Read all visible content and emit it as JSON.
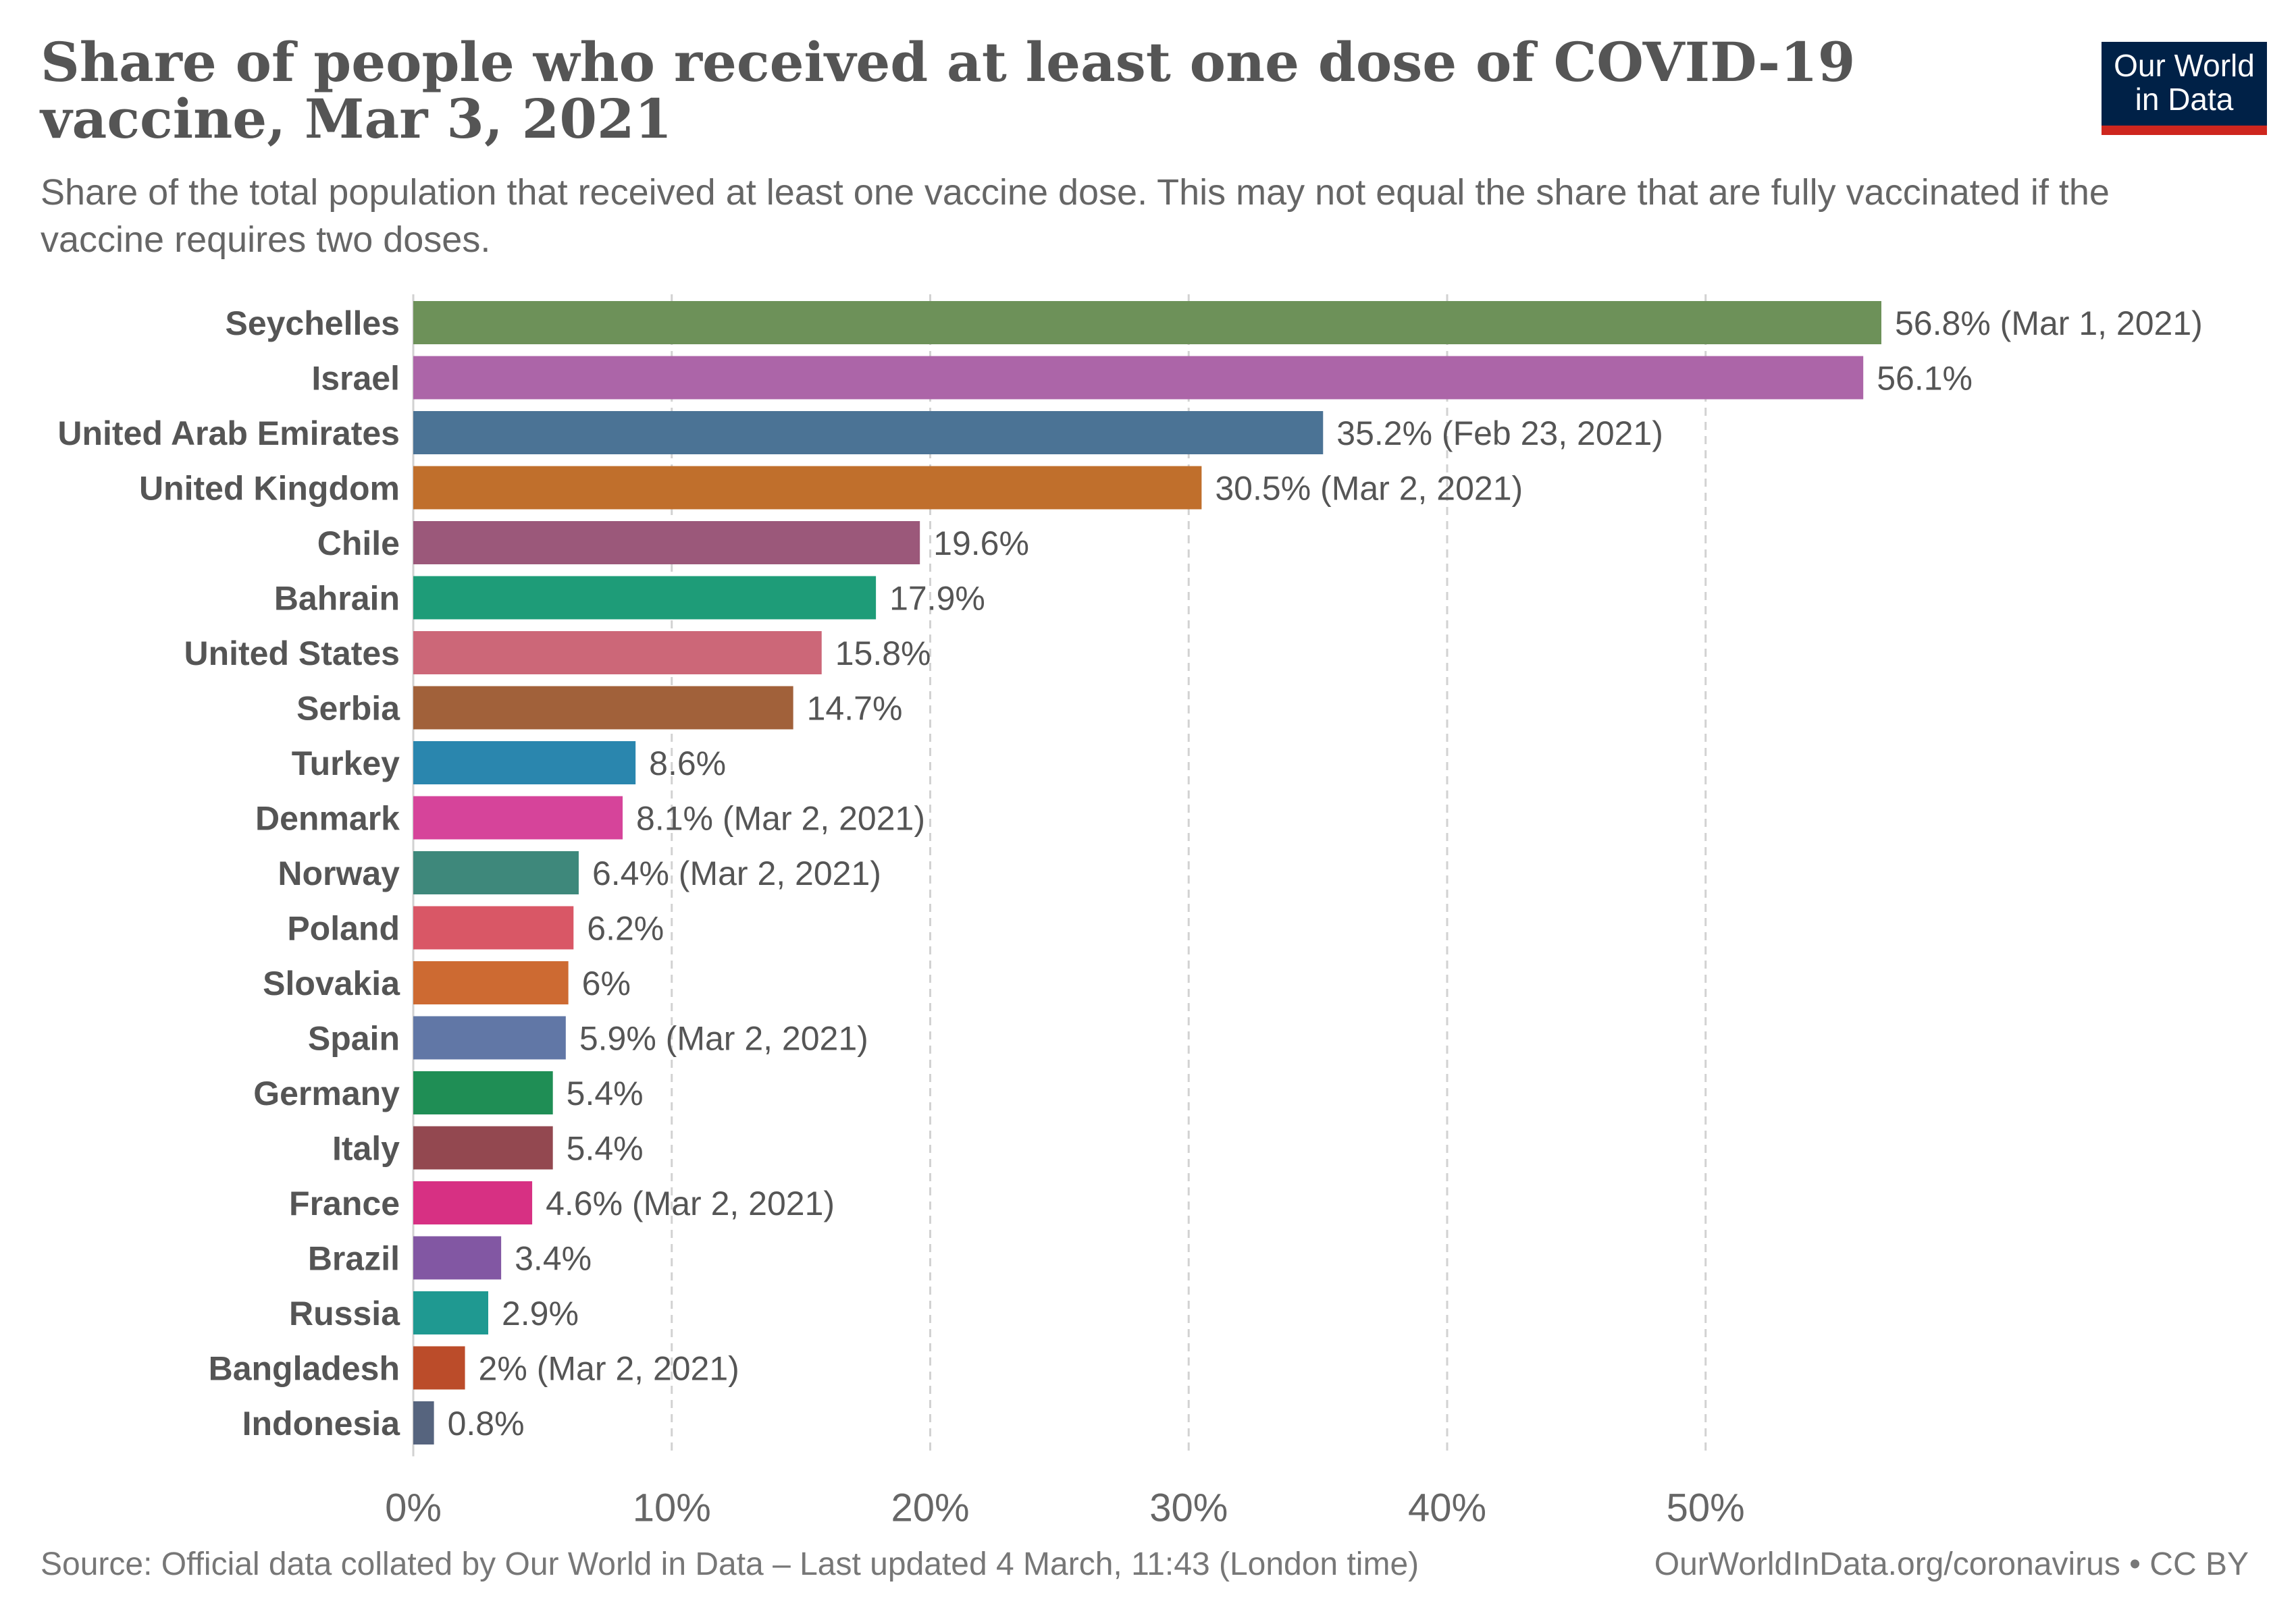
{
  "header": {
    "title": "Share of people who received at least one dose of COVID-19 vaccine, Mar 3, 2021",
    "subtitle": "Share of the total population that received at least one vaccine dose. This may not equal the share that are fully vaccinated if the vaccine requires two doses.",
    "logo_line1": "Our World",
    "logo_line2": "in Data"
  },
  "footer": {
    "source": "Source: Official data collated by Our World in Data – Last updated 4 March, 11:43 (London time)",
    "license": "OurWorldInData.org/coronavirus • CC BY"
  },
  "colors": {
    "logo_background": "#002147",
    "logo_accent": "#ce261e"
  },
  "chart_data": {
    "type": "bar",
    "orientation": "horizontal",
    "categories": [
      "Seychelles",
      "Israel",
      "United Arab Emirates",
      "United Kingdom",
      "Chile",
      "Bahrain",
      "United States",
      "Serbia",
      "Turkey",
      "Denmark",
      "Norway",
      "Poland",
      "Slovakia",
      "Spain",
      "Germany",
      "Italy",
      "France",
      "Brazil",
      "Russia",
      "Bangladesh",
      "Indonesia"
    ],
    "values": [
      56.8,
      56.1,
      35.2,
      30.5,
      19.6,
      17.9,
      15.8,
      14.7,
      8.6,
      8.1,
      6.4,
      6.2,
      6,
      5.9,
      5.4,
      5.4,
      4.6,
      3.4,
      2.9,
      2,
      0.8
    ],
    "value_labels": [
      "56.8% (Mar 1, 2021)",
      "56.1%",
      "35.2% (Feb 23, 2021)",
      "30.5% (Mar 2, 2021)",
      "19.6%",
      "17.9%",
      "15.8%",
      "14.7%",
      "8.6%",
      "8.1% (Mar 2, 2021)",
      "6.4% (Mar 2, 2021)",
      "6.2%",
      "6%",
      "5.9% (Mar 2, 2021)",
      "5.4%",
      "5.4%",
      "4.6% (Mar 2, 2021)",
      "3.4%",
      "2.9%",
      "2% (Mar 2, 2021)",
      "0.8%"
    ],
    "bar_colors": [
      "#6d9159",
      "#ac65a8",
      "#4b7395",
      "#c06f2c",
      "#9b587a",
      "#1e9c78",
      "#cc6778",
      "#a1613a",
      "#2a86ae",
      "#d6449a",
      "#3e887b",
      "#d95766",
      "#cd6a32",
      "#6177a6",
      "#1f8e55",
      "#934850",
      "#d73083",
      "#8257a3",
      "#1f9991",
      "#bb4c2a",
      "#56647e"
    ],
    "x_ticks": [
      0,
      10,
      20,
      30,
      40,
      50
    ],
    "x_tick_labels": [
      "0%",
      "10%",
      "20%",
      "30%",
      "40%",
      "50%"
    ],
    "xlim": [
      0,
      56.8
    ],
    "grid": "vertical dashed"
  }
}
